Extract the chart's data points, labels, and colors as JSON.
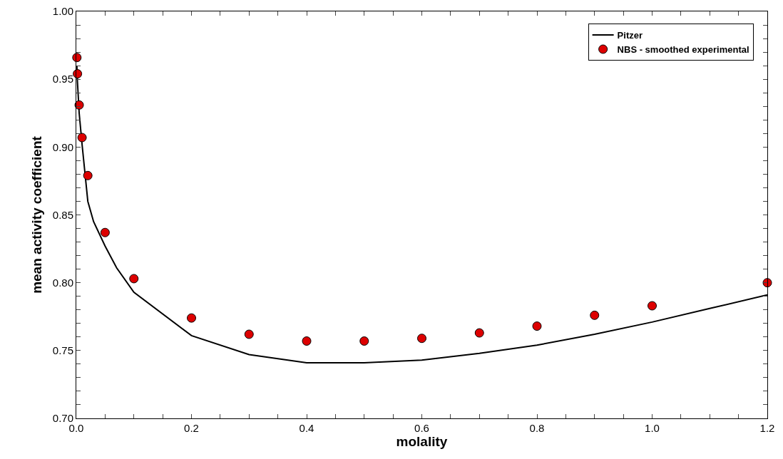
{
  "chart_data": {
    "type": "line",
    "xlabel": "molality",
    "ylabel": "mean activity coefficient",
    "xlim": [
      0,
      1.2
    ],
    "ylim": [
      0.7,
      1.0
    ],
    "xticks": [
      {
        "value": 0,
        "label": "0.0"
      },
      {
        "value": 0.05,
        "label": null
      },
      {
        "value": 0.1,
        "label": null
      },
      {
        "value": 0.15,
        "label": null
      },
      {
        "value": 0.2,
        "label": "0.2"
      },
      {
        "value": 0.25,
        "label": null
      },
      {
        "value": 0.3,
        "label": null
      },
      {
        "value": 0.35,
        "label": null
      },
      {
        "value": 0.4,
        "label": "0.4"
      },
      {
        "value": 0.45,
        "label": null
      },
      {
        "value": 0.5,
        "label": null
      },
      {
        "value": 0.55,
        "label": null
      },
      {
        "value": 0.6,
        "label": "0.6"
      },
      {
        "value": 0.65,
        "label": null
      },
      {
        "value": 0.7,
        "label": null
      },
      {
        "value": 0.75,
        "label": null
      },
      {
        "value": 0.8,
        "label": "0.8"
      },
      {
        "value": 0.85,
        "label": null
      },
      {
        "value": 0.9,
        "label": null
      },
      {
        "value": 0.95,
        "label": null
      },
      {
        "value": 1.0,
        "label": "1.0"
      },
      {
        "value": 1.05,
        "label": null
      },
      {
        "value": 1.1,
        "label": null
      },
      {
        "value": 1.15,
        "label": null
      },
      {
        "value": 1.2,
        "label": "1.2"
      }
    ],
    "yticks": [
      {
        "value": 0.7,
        "label": "0.70"
      },
      {
        "value": 0.71,
        "label": null
      },
      {
        "value": 0.72,
        "label": null
      },
      {
        "value": 0.73,
        "label": null
      },
      {
        "value": 0.74,
        "label": null
      },
      {
        "value": 0.75,
        "label": "0.75"
      },
      {
        "value": 0.76,
        "label": null
      },
      {
        "value": 0.77,
        "label": null
      },
      {
        "value": 0.78,
        "label": null
      },
      {
        "value": 0.79,
        "label": null
      },
      {
        "value": 0.8,
        "label": "0.80"
      },
      {
        "value": 0.81,
        "label": null
      },
      {
        "value": 0.82,
        "label": null
      },
      {
        "value": 0.83,
        "label": null
      },
      {
        "value": 0.84,
        "label": null
      },
      {
        "value": 0.85,
        "label": "0.85"
      },
      {
        "value": 0.86,
        "label": null
      },
      {
        "value": 0.87,
        "label": null
      },
      {
        "value": 0.88,
        "label": null
      },
      {
        "value": 0.89,
        "label": null
      },
      {
        "value": 0.9,
        "label": "0.90"
      },
      {
        "value": 0.91,
        "label": null
      },
      {
        "value": 0.92,
        "label": null
      },
      {
        "value": 0.93,
        "label": null
      },
      {
        "value": 0.94,
        "label": null
      },
      {
        "value": 0.95,
        "label": "0.95"
      },
      {
        "value": 0.96,
        "label": null
      },
      {
        "value": 0.97,
        "label": null
      },
      {
        "value": 0.98,
        "label": null
      },
      {
        "value": 0.99,
        "label": null
      },
      {
        "value": 1.0,
        "label": "1.00"
      }
    ],
    "grid": false,
    "legend": "top right",
    "series": [
      {
        "name": "Pitzer",
        "color": "#000000",
        "line_style": "solid",
        "marker": "none",
        "x": [
          0.001,
          0.002,
          0.005,
          0.01,
          0.02,
          0.03,
          0.05,
          0.07,
          0.1,
          0.2,
          0.3,
          0.4,
          0.5,
          0.6,
          0.7,
          0.8,
          0.9,
          1.0,
          1.1,
          1.2
        ],
        "values": [
          0.96,
          0.948,
          0.925,
          0.902,
          0.86,
          0.845,
          0.827,
          0.811,
          0.793,
          0.761,
          0.747,
          0.741,
          0.741,
          0.743,
          0.748,
          0.754,
          0.762,
          0.771,
          0.781,
          0.791
        ]
      },
      {
        "name": "NBS - smoothed experimental",
        "type": "scatter",
        "color": "#dd0000",
        "marker": "circle",
        "x": [
          0.001,
          0.002,
          0.005,
          0.01,
          0.02,
          0.05,
          0.1,
          0.2,
          0.3,
          0.4,
          0.5,
          0.6,
          0.7,
          0.8,
          0.9,
          1.0,
          1.2
        ],
        "values": [
          0.966,
          0.954,
          0.931,
          0.907,
          0.879,
          0.837,
          0.803,
          0.774,
          0.762,
          0.757,
          0.757,
          0.759,
          0.763,
          0.768,
          0.776,
          0.783,
          0.8
        ]
      }
    ]
  }
}
